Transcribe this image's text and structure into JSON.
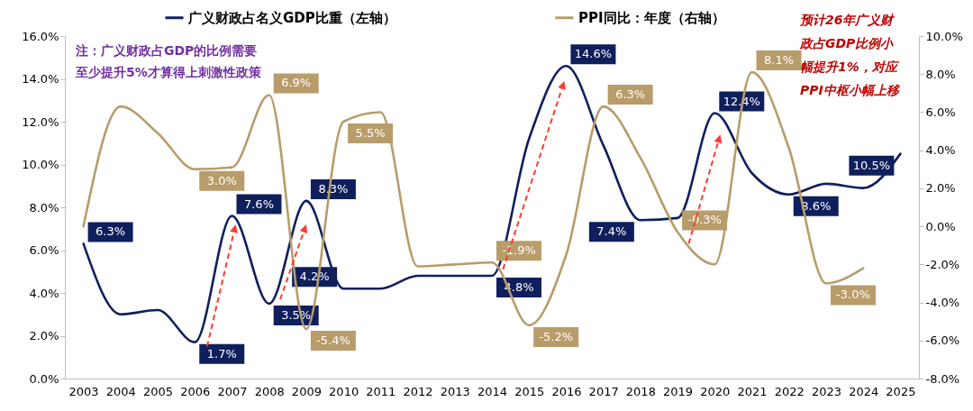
{
  "chart_data": {
    "type": "line",
    "categories": [
      "2003",
      "2004",
      "2005",
      "2006",
      "2007",
      "2008",
      "2009",
      "2010",
      "2011",
      "2012",
      "2013",
      "2014",
      "2015",
      "2016",
      "2017",
      "2018",
      "2019",
      "2020",
      "2021",
      "2022",
      "2023",
      "2024",
      "2025"
    ],
    "series": [
      {
        "name": "广义财政占名义GDP比重（左轴）",
        "color": "#0f1f5c",
        "values": [
          6.3,
          3.0,
          3.2,
          1.7,
          7.6,
          3.5,
          8.3,
          4.2,
          4.2,
          4.8,
          4.8,
          4.8,
          11.2,
          14.6,
          10.9,
          7.4,
          7.5,
          12.4,
          9.6,
          8.6,
          9.1,
          8.9,
          10.5
        ],
        "value_labels": [
          "6.3%",
          null,
          null,
          "1.7%",
          "7.6%",
          "3.5%",
          "8.3%",
          "4.2%",
          null,
          null,
          null,
          "4.8%",
          null,
          "14.6%",
          null,
          "7.4%",
          null,
          "12.4%",
          null,
          "8.6%",
          null,
          null,
          "10.5%"
        ]
      },
      {
        "name": "PPI同比：年度（右轴）",
        "color": "#b89c6a",
        "axis": "y2",
        "values": [
          0.0,
          6.3,
          4.9,
          3.0,
          3.1,
          6.9,
          -5.4,
          5.5,
          6.0,
          -2.1,
          -2.0,
          -1.9,
          -5.2,
          -1.5,
          6.3,
          3.6,
          -0.3,
          -2.0,
          8.1,
          4.1,
          -3.0,
          -2.2,
          null
        ],
        "value_labels": [
          null,
          null,
          null,
          "3.0%",
          null,
          "6.9%",
          "-5.4%",
          "5.5%",
          null,
          null,
          null,
          "-1.9%",
          "-5.2%",
          null,
          "6.3%",
          null,
          "-0.3%",
          null,
          "8.1%",
          null,
          "-3.0%",
          null,
          null
        ]
      }
    ],
    "ylim": [
      0,
      16
    ],
    "yticks": [
      {
        "value": 0,
        "label": "0.0%"
      },
      {
        "value": 2,
        "label": "2.0%"
      },
      {
        "value": 4,
        "label": "4.0%"
      },
      {
        "value": 6,
        "label": "6.0%"
      },
      {
        "value": 8,
        "label": "8.0%"
      },
      {
        "value": 10,
        "label": "10.0%"
      },
      {
        "value": 12,
        "label": "12.0%"
      },
      {
        "value": 14,
        "label": "14.0%"
      },
      {
        "value": 16,
        "label": "16.0%"
      }
    ],
    "y2lim": [
      -8,
      10
    ],
    "y2ticks": [
      {
        "value": -8,
        "label": "-8.0%"
      },
      {
        "value": -6,
        "label": "-6.0%"
      },
      {
        "value": -4,
        "label": "-4.0%"
      },
      {
        "value": -2,
        "label": "-2.0%"
      },
      {
        "value": 0,
        "label": "0.0%"
      },
      {
        "value": 2,
        "label": "2.0%"
      },
      {
        "value": 4,
        "label": "4.0%"
      },
      {
        "value": 6,
        "label": "6.0%"
      },
      {
        "value": 8,
        "label": "8.0%"
      },
      {
        "value": 10,
        "label": "10.0%"
      }
    ],
    "annotations": [
      "注：广义财政占GDP的比例需要至少提升5%才算得上刺激性政策",
      "预计26年广义财政占GDP比例小幅提升1%，对应PPI中枢小幅上移"
    ],
    "legend": "top",
    "grid": false,
    "marker": "none",
    "line_style": "solid"
  }
}
